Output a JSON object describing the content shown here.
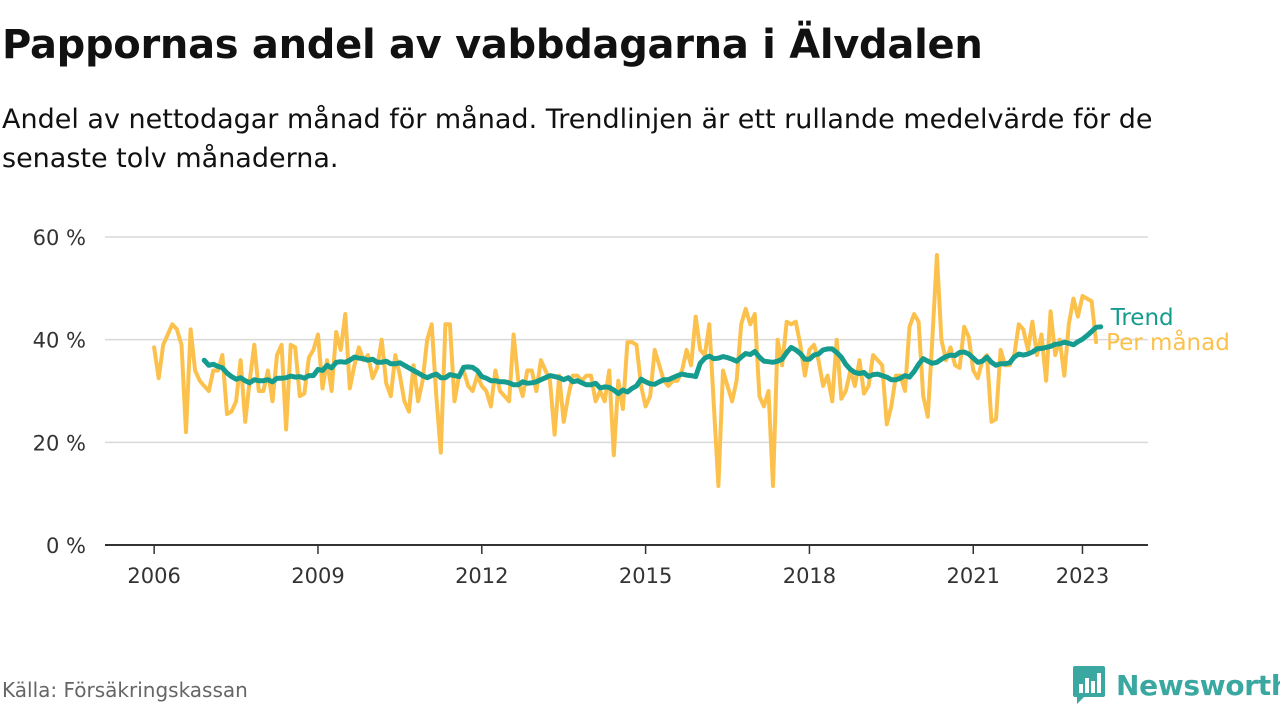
{
  "header": {
    "title": "Pappornas andel av vabbdagarna i Älvdalen",
    "subtitle": "Andel av nettodagar månad för månad. Trendlinjen är ett rullande medelvärde för de senaste tolv månaderna."
  },
  "footer": {
    "source": "Källa: Försäkringskassan",
    "brand": "Newsworthy"
  },
  "colors": {
    "monthly": "#fbc14c",
    "trend": "#169c8f",
    "grid": "#d9d9d9",
    "axis": "#333333",
    "brand": "#3aa8a0"
  },
  "chart_data": {
    "type": "line",
    "title": "Pappornas andel av vabbdagarna i Älvdalen",
    "xlabel": "",
    "ylabel": "",
    "ylim": [
      0,
      60
    ],
    "xlim": [
      2005.1,
      2024.2
    ],
    "y_ticks": [
      0,
      20,
      40,
      60
    ],
    "y_tick_labels": [
      "0 %",
      "20 %",
      "40 %",
      "60 %"
    ],
    "x_ticks": [
      2006,
      2009,
      2012,
      2015,
      2018,
      2021,
      2023
    ],
    "x_tick_labels": [
      "2006",
      "2009",
      "2012",
      "2015",
      "2018",
      "2021",
      "2023"
    ],
    "grid": true,
    "legend": "inline labels at line ends",
    "x_start": "2006-01",
    "x_step": "month",
    "series": [
      {
        "name": "Per månad",
        "color": "#fbc14c",
        "values": [
          38.5,
          32.5,
          39,
          41,
          43,
          42,
          39,
          22,
          42,
          34,
          32,
          31,
          30,
          34,
          34,
          37,
          25.5,
          26,
          28,
          36,
          24,
          32,
          39,
          30,
          30,
          34,
          28,
          37,
          39,
          22.5,
          39,
          38.5,
          29,
          29.5,
          36.5,
          38,
          41,
          30.5,
          36,
          30,
          41.5,
          38,
          45,
          30.5,
          35,
          38.5,
          36,
          37,
          32.5,
          34.5,
          40,
          31.5,
          29,
          37,
          33,
          28,
          26,
          35,
          28,
          32,
          40,
          43,
          29,
          18,
          43,
          43,
          28,
          33,
          34,
          31,
          30,
          33,
          31,
          30,
          27,
          34,
          30,
          29,
          28,
          41,
          32,
          29,
          34,
          34,
          30,
          36,
          34,
          32,
          21.5,
          33,
          24,
          29,
          33,
          33,
          32,
          33,
          33,
          28,
          30,
          28,
          34,
          17.5,
          32,
          26.5,
          39.5,
          39.5,
          39,
          31,
          27,
          29,
          38,
          35,
          32,
          31,
          32,
          32,
          34,
          38,
          35,
          44.5,
          38,
          37,
          43,
          27,
          11.5,
          34,
          31,
          28,
          32,
          43,
          46,
          43,
          45,
          29,
          27,
          30,
          11.5,
          40,
          35,
          43.5,
          43,
          43.5,
          39,
          33,
          38,
          39,
          36,
          31,
          33,
          28,
          40,
          28.5,
          30,
          34,
          31,
          36,
          29.5,
          31,
          37,
          36,
          35,
          23.5,
          27,
          33,
          33,
          30,
          42.5,
          45,
          43.5,
          29,
          25,
          40,
          56.5,
          40,
          36,
          38.5,
          35,
          34.5,
          42.5,
          40.5,
          34,
          32.5,
          36,
          37,
          24,
          24.5,
          38,
          35,
          35,
          37,
          43,
          42,
          38,
          43.5,
          37,
          41,
          32,
          45.5,
          37,
          40,
          33,
          43,
          48,
          44.5,
          48.5,
          48,
          47.5,
          39.5
        ]
      },
      {
        "name": "Trend",
        "color": "#169c8f",
        "values": [
          null,
          null,
          null,
          null,
          null,
          null,
          null,
          null,
          null,
          null,
          null,
          36,
          35,
          35.2,
          34.8,
          34.5,
          33.5,
          32.8,
          32.3,
          32.6,
          32,
          31.6,
          32.2,
          32,
          32,
          32.2,
          31.8,
          32.5,
          32.5,
          32.6,
          32.9,
          32.7,
          32.8,
          32.5,
          33,
          33,
          34.2,
          34,
          35,
          34.5,
          35.6,
          35.7,
          35.6,
          36,
          36.6,
          36.4,
          36.3,
          36,
          36.2,
          35.6,
          35.6,
          35.8,
          35.3,
          35.3,
          35.5,
          35,
          34.5,
          34,
          33.5,
          33,
          32.6,
          33,
          33.3,
          32.6,
          32.6,
          33.2,
          33,
          32.8,
          34.6,
          34.7,
          34.6,
          34,
          32.8,
          32.5,
          32,
          32,
          31.8,
          31.8,
          31.6,
          31.2,
          31.2,
          31.8,
          31.5,
          31.6,
          31.8,
          32.2,
          32.6,
          33,
          32.8,
          32.6,
          32.2,
          32.6,
          31.8,
          32,
          31.6,
          31.2,
          31.2,
          31.5,
          30.6,
          30.8,
          30.7,
          30.2,
          29.5,
          30.2,
          29.8,
          30.5,
          31,
          32.3,
          31.8,
          31.4,
          31.3,
          31.8,
          32.2,
          32.2,
          32.6,
          33,
          33.3,
          33.1,
          33,
          32.8,
          35.4,
          36.4,
          36.8,
          36.3,
          36.4,
          36.7,
          36.5,
          36.2,
          35.8,
          36.6,
          37.3,
          37.1,
          37.7,
          36.6,
          35.8,
          35.7,
          35.6,
          35.8,
          36.2,
          37.5,
          38.5,
          38,
          37.3,
          36.2,
          36.2,
          37,
          37.2,
          38,
          38.2,
          38.2,
          37.5,
          36.6,
          35.2,
          34.2,
          33.6,
          33.4,
          33.6,
          32.8,
          33.2,
          33.3,
          33,
          32.7,
          32.2,
          32.2,
          32.5,
          33,
          32.7,
          33.8,
          35.2,
          36.3,
          35.8,
          35.4,
          35.6,
          36.2,
          36.7,
          37,
          36.9,
          37.5,
          37.6,
          37.2,
          36.4,
          35.6,
          35.8,
          36.6,
          35.6,
          35,
          35.3,
          35.3,
          35.5,
          36.6,
          37.2,
          37,
          37.2,
          37.6,
          38.2,
          38.3,
          38.5,
          38.7,
          39.1,
          39.2,
          39.5,
          39.3,
          39,
          39.6,
          40.1,
          40.8,
          41.6,
          42.4,
          42.5
        ]
      }
    ]
  }
}
